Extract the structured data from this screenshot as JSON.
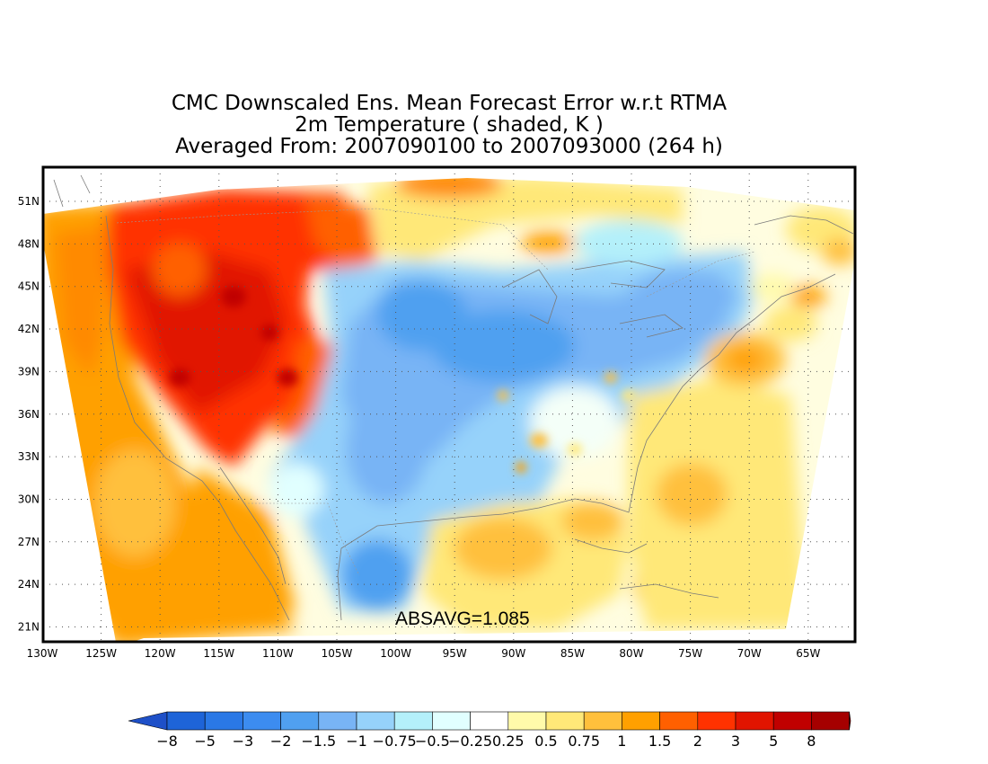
{
  "title": {
    "line1": "CMC Downscaled Ens. Mean Forecast Error w.r.t RTMA",
    "line2": "2m Temperature ( shaded, K )",
    "line3": "Averaged From: 2007090100 to 2007093000 (264 h)"
  },
  "annotation": "ABSAVG=1.085",
  "map": {
    "lat_labels": [
      "51N",
      "48N",
      "45N",
      "42N",
      "39N",
      "36N",
      "33N",
      "30N",
      "27N",
      "24N",
      "21N"
    ],
    "lon_labels": [
      "130W",
      "125W",
      "120W",
      "115W",
      "110W",
      "105W",
      "100W",
      "95W",
      "90W",
      "85W",
      "80W",
      "75W",
      "70W",
      "65W"
    ],
    "gridlines": "dotted",
    "projection_note": "Lambert-like trapezoidal domain",
    "field_regions": [
      {
        "region": "western US / Great Basin",
        "level": "3 to 5"
      },
      {
        "region": "Pacific Ocean",
        "level": "1 to 2"
      },
      {
        "region": "central plains / Texas / Mexico",
        "level": "-1.5 to -0.5"
      },
      {
        "region": "Great Lakes / Midwest",
        "level": "-1.5 to -1"
      },
      {
        "region": "Gulf of Mexico",
        "level": "0.5 to 1"
      },
      {
        "region": "Atlantic Ocean",
        "level": "0.25 to 1"
      }
    ]
  },
  "colorbar": {
    "labels": [
      "−8",
      "−5",
      "−3",
      "−2",
      "−1.5",
      "−1",
      "−0.75",
      "−0.5",
      "−0.25",
      "0.25",
      "0.5",
      "0.75",
      "1",
      "1.5",
      "2",
      "3",
      "5",
      "8"
    ],
    "colors": [
      "#1e64d8",
      "#2a78e6",
      "#3c8cf0",
      "#50a0f0",
      "#78b4f5",
      "#96d2fa",
      "#b4f0fa",
      "#e1ffff",
      "#ffffff",
      "#fffaaa",
      "#ffe878",
      "#ffc03c",
      "#ffa000",
      "#ff6000",
      "#ff3200",
      "#e11400",
      "#c00000",
      "#a50000"
    ],
    "low_arrow_color": "#1e50c8",
    "high_arrow_color": "#8c0000"
  }
}
